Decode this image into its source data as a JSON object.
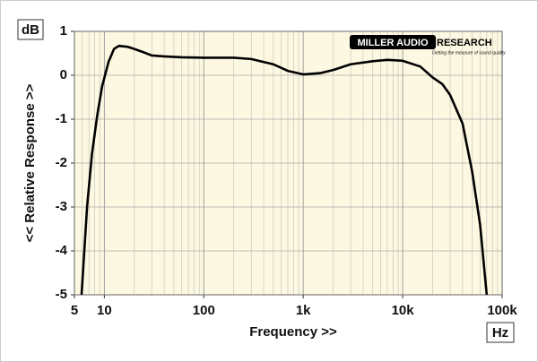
{
  "chart_data": {
    "type": "line",
    "y_unit_label": "dB",
    "x_unit_label": "Hz",
    "y_label": "<< Relative Response >>",
    "x_label": "Frequency >>",
    "logo": {
      "name_part1": "MILLER AUDIO",
      "name_part2": "RESEARCH",
      "tagline": "Getting the measure of sound quality"
    },
    "x_scale": "log",
    "grid": true,
    "background": "#fdf8e1",
    "xlim": [
      5,
      100000
    ],
    "ylim": [
      -5,
      1
    ],
    "xticks": [
      5,
      10,
      100,
      {
        "value": 1000,
        "label": "1k"
      },
      {
        "value": 10000,
        "label": "10k"
      },
      {
        "value": 100000,
        "label": "100k"
      }
    ],
    "yticks": [
      1,
      0,
      -1,
      -2,
      -3,
      -4,
      -5
    ],
    "series": [
      {
        "color": "#000000",
        "x": [
          5.9,
          6.7,
          7.5,
          8.5,
          9.5,
          11,
          12.5,
          14,
          17,
          20,
          25,
          30,
          40,
          60,
          100,
          200,
          300,
          500,
          700,
          1000,
          1500,
          2000,
          3000,
          5000,
          7000,
          10000,
          15000,
          20000,
          25000,
          30000,
          40000,
          50000,
          60000,
          70000
        ],
        "values": [
          -5,
          -3,
          -1.8,
          -0.9,
          -0.25,
          0.3,
          0.6,
          0.67,
          0.65,
          0.6,
          0.52,
          0.45,
          0.43,
          0.41,
          0.4,
          0.4,
          0.37,
          0.25,
          0.1,
          0.02,
          0.05,
          0.12,
          0.25,
          0.32,
          0.35,
          0.33,
          0.2,
          -0.05,
          -0.2,
          -0.45,
          -1.1,
          -2.2,
          -3.4,
          -5
        ]
      }
    ]
  }
}
